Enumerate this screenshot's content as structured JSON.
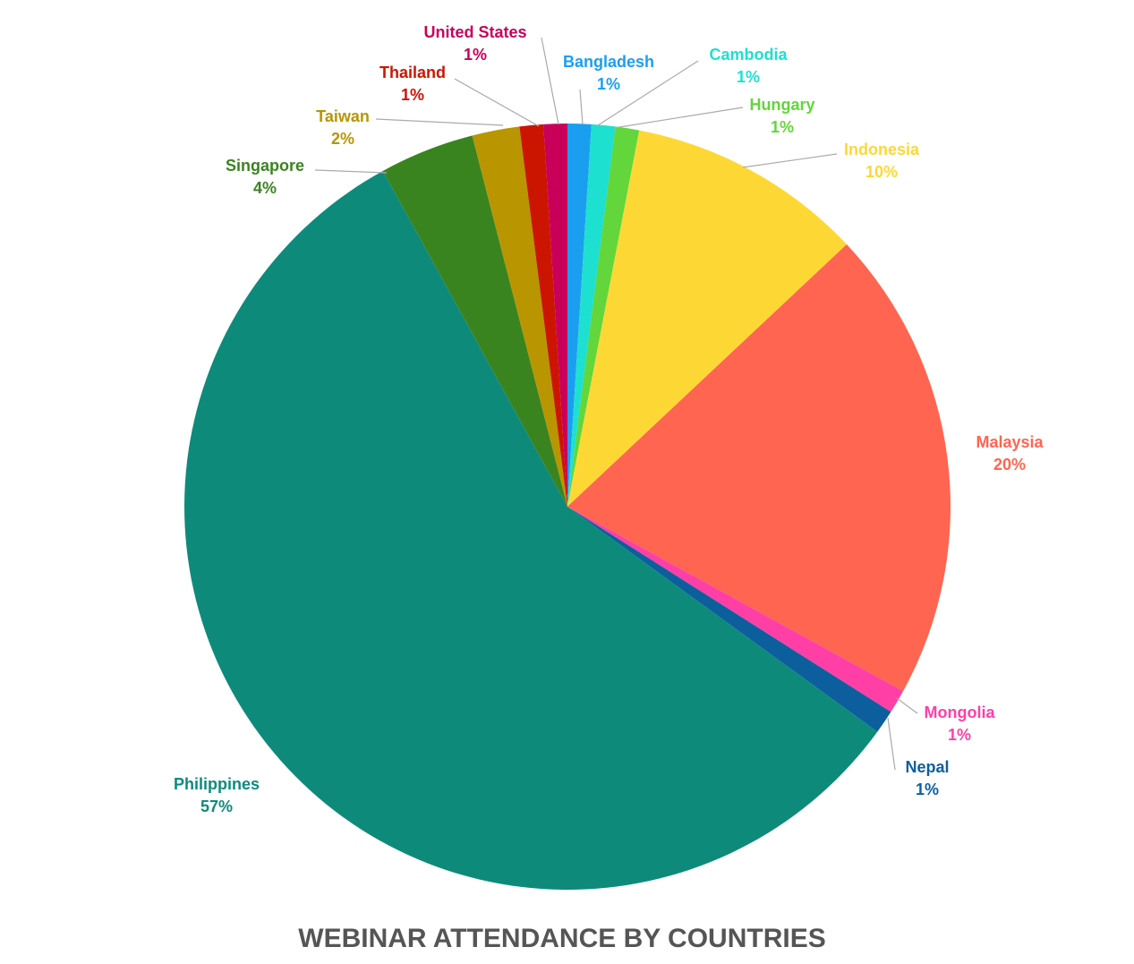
{
  "chart_data": {
    "type": "pie",
    "title": "WEBINAR ATTENDANCE BY COUNTRIES",
    "categories": [
      "Bangladesh",
      "Cambodia",
      "Hungary",
      "Indonesia",
      "Malaysia",
      "Mongolia",
      "Nepal",
      "Philippines",
      "Singapore",
      "Taiwan",
      "Thailand",
      "United States"
    ],
    "values": [
      1,
      1,
      1,
      10,
      20,
      1,
      1,
      57,
      4,
      2,
      1,
      1
    ],
    "value_labels": [
      "1%",
      "1%",
      "1%",
      "10%",
      "20%",
      "1%",
      "1%",
      "57%",
      "4%",
      "2%",
      "1%",
      "1%"
    ],
    "colors": [
      "#1a9ff0",
      "#1ee0d0",
      "#62d63a",
      "#fdd835",
      "#ff6550",
      "#ff3fa6",
      "#0c5f9c",
      "#0e8a7b",
      "#3a8420",
      "#b99500",
      "#cc1500",
      "#c8005a"
    ]
  }
}
